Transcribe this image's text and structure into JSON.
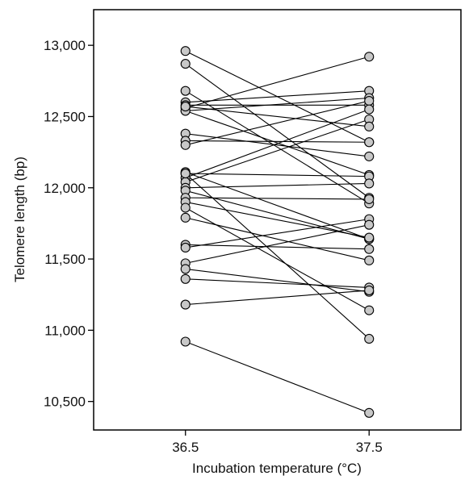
{
  "chart_data": {
    "type": "line",
    "title": "",
    "xlabel": "Incubation temperature (°C)",
    "ylabel": "Telomere length (bp)",
    "x_categories": [
      "36.5",
      "37.5"
    ],
    "xlim": [
      36.0,
      38.0
    ],
    "ylim": [
      10300,
      13250
    ],
    "yticks": [
      10500,
      11000,
      11500,
      12000,
      12500,
      13000
    ],
    "ytick_labels": [
      "10,500",
      "11,000",
      "11,500",
      "12,000",
      "12,500",
      "13,000"
    ],
    "xticks": [
      36.5,
      37.5
    ],
    "xtick_labels": [
      "36.5",
      "37.5"
    ],
    "grid": false,
    "marker_color": "#c8c8c8",
    "line_color": "#000000",
    "pairs": [
      {
        "x": [
          36.5,
          37.5
        ],
        "y": [
          12960,
          12320
        ]
      },
      {
        "x": [
          36.5,
          37.5
        ],
        "y": [
          12870,
          11930
        ]
      },
      {
        "x": [
          36.5,
          37.5
        ],
        "y": [
          12680,
          11890
        ]
      },
      {
        "x": [
          36.5,
          37.5
        ],
        "y": [
          12600,
          12680
        ]
      },
      {
        "x": [
          36.5,
          37.5
        ],
        "y": [
          12580,
          12580
        ]
      },
      {
        "x": [
          36.5,
          37.5
        ],
        "y": [
          12560,
          12920
        ]
      },
      {
        "x": [
          36.5,
          37.5
        ],
        "y": [
          12540,
          12630
        ]
      },
      {
        "x": [
          36.5,
          37.5
        ],
        "y": [
          12540,
          12090
        ]
      },
      {
        "x": [
          36.5,
          37.5
        ],
        "y": [
          12380,
          12220
        ]
      },
      {
        "x": [
          36.5,
          37.5
        ],
        "y": [
          12330,
          12320
        ]
      },
      {
        "x": [
          36.5,
          37.5
        ],
        "y": [
          12300,
          12610
        ]
      },
      {
        "x": [
          36.5,
          37.5
        ],
        "y": [
          12110,
          11640
        ]
      },
      {
        "x": [
          36.5,
          37.5
        ],
        "y": [
          12100,
          12080
        ]
      },
      {
        "x": [
          36.5,
          37.5
        ],
        "y": [
          12070,
          12550
        ]
      },
      {
        "x": [
          36.5,
          37.5
        ],
        "y": [
          12040,
          12480
        ]
      },
      {
        "x": [
          36.5,
          37.5
        ],
        "y": [
          12000,
          12030
        ]
      },
      {
        "x": [
          36.5,
          37.5
        ],
        "y": [
          11980,
          11640
        ]
      },
      {
        "x": [
          36.5,
          37.5
        ],
        "y": [
          11930,
          11920
        ]
      },
      {
        "x": [
          36.5,
          37.5
        ],
        "y": [
          11900,
          11650
        ]
      },
      {
        "x": [
          36.5,
          37.5
        ],
        "y": [
          11860,
          11140
        ]
      },
      {
        "x": [
          36.5,
          37.5
        ],
        "y": [
          11790,
          11490
        ]
      },
      {
        "x": [
          36.5,
          37.5
        ],
        "y": [
          11600,
          11570
        ]
      },
      {
        "x": [
          36.5,
          37.5
        ],
        "y": [
          11580,
          11780
        ]
      },
      {
        "x": [
          36.5,
          37.5
        ],
        "y": [
          11470,
          11740
        ]
      },
      {
        "x": [
          36.5,
          37.5
        ],
        "y": [
          11430,
          11270
        ]
      },
      {
        "x": [
          36.5,
          37.5
        ],
        "y": [
          11360,
          11300
        ]
      },
      {
        "x": [
          36.5,
          37.5
        ],
        "y": [
          11180,
          11280
        ]
      },
      {
        "x": [
          36.5,
          37.5
        ],
        "y": [
          10920,
          10420
        ]
      },
      {
        "x": [
          36.5,
          37.5
        ],
        "y": [
          12100,
          10940
        ]
      },
      {
        "x": [
          36.5,
          37.5
        ],
        "y": [
          12570,
          12430
        ]
      }
    ]
  }
}
